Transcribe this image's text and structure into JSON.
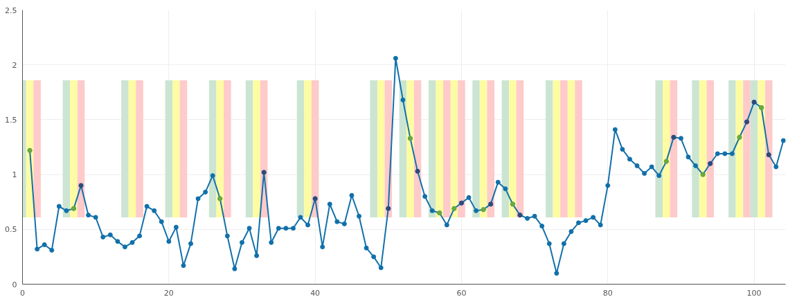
{
  "chart_data": {
    "type": "line",
    "xlim": [
      0,
      104.3
    ],
    "ylim": [
      0,
      2.5
    ],
    "xticks": [
      0,
      20,
      40,
      60,
      80,
      100
    ],
    "yticks": [
      0,
      0.5,
      1,
      1.5,
      2,
      2.5
    ],
    "grid": true,
    "marker": "circle",
    "line_style": "solid",
    "series": [
      {
        "type": "bar",
        "color": "#cbe5d2",
        "x": [
          0,
          6,
          14,
          20,
          26,
          31,
          38,
          48,
          52,
          56,
          62,
          66,
          72,
          87,
          92,
          97,
          100
        ],
        "base": [
          0.61,
          0.61,
          0.61,
          0.61,
          0.61,
          0.61,
          0.61,
          0.61,
          0.61,
          0.61,
          0.61,
          0.61,
          0.61,
          0.61,
          0.61,
          0.61,
          0.61
        ],
        "values": [
          1.25,
          1.25,
          1.25,
          1.25,
          1.25,
          1.25,
          1.25,
          1.25,
          1.25,
          1.25,
          1.25,
          1.25,
          1.25,
          1.25,
          1.25,
          1.25,
          1.25
        ]
      },
      {
        "type": "bar",
        "color": "#fdfca2",
        "x": [
          1,
          7,
          15,
          21,
          27,
          32,
          39,
          49,
          53,
          57,
          59,
          63,
          67,
          73,
          75,
          88,
          93,
          98,
          101
        ],
        "base": [
          0.61,
          0.61,
          0.61,
          0.61,
          0.61,
          0.61,
          0.61,
          0.61,
          0.61,
          0.61,
          0.61,
          0.61,
          0.61,
          0.61,
          0.61,
          0.61,
          0.61,
          0.61,
          0.61
        ],
        "values": [
          1.25,
          1.25,
          1.25,
          1.25,
          1.25,
          1.25,
          1.25,
          1.25,
          1.25,
          1.25,
          1.25,
          1.25,
          1.25,
          1.25,
          1.25,
          1.25,
          1.25,
          1.25,
          1.25
        ]
      },
      {
        "type": "bar",
        "color": "#ffcaca",
        "x": [
          2,
          8,
          16,
          22,
          28,
          33,
          40,
          50,
          54,
          58,
          60,
          64,
          68,
          74,
          76,
          89,
          94,
          99,
          102
        ],
        "base": [
          0.61,
          0.61,
          0.61,
          0.61,
          0.61,
          0.61,
          0.61,
          0.61,
          0.61,
          0.61,
          0.61,
          0.61,
          0.61,
          0.61,
          0.61,
          0.61,
          0.61,
          0.61,
          0.61
        ],
        "values": [
          1.25,
          1.25,
          1.25,
          1.25,
          1.25,
          1.25,
          1.25,
          1.25,
          1.25,
          1.25,
          1.25,
          1.25,
          1.25,
          1.25,
          1.25,
          1.25,
          1.25,
          1.25,
          1.25
        ]
      },
      {
        "color": "#1170aa",
        "x": [
          1,
          2,
          3,
          4,
          5,
          6,
          7,
          8,
          9,
          10,
          11,
          12,
          13,
          14,
          15,
          16,
          17,
          18,
          19,
          20,
          21,
          22,
          23,
          24,
          25,
          26,
          27,
          28,
          29,
          30,
          31,
          32,
          33,
          34,
          35,
          36,
          37,
          38,
          39,
          40,
          41,
          42,
          43,
          44,
          45,
          46,
          47,
          48,
          49,
          50,
          51,
          52,
          53,
          54,
          55,
          56,
          57,
          58,
          59,
          60,
          61,
          62,
          63,
          64,
          65,
          66,
          67,
          68,
          69,
          70,
          71,
          72,
          73,
          74,
          75,
          76,
          77,
          78,
          79,
          80,
          81,
          82,
          83,
          84,
          85,
          86,
          87,
          88,
          89,
          90,
          91,
          92,
          93,
          94,
          95,
          96,
          97,
          98,
          99,
          100,
          101,
          102,
          103,
          104
        ],
        "values": [
          1.22,
          0.32,
          0.36,
          0.31,
          0.71,
          0.67,
          0.69,
          0.9,
          0.63,
          0.61,
          0.43,
          0.45,
          0.39,
          0.34,
          0.38,
          0.44,
          0.71,
          0.67,
          0.57,
          0.39,
          0.52,
          0.17,
          0.37,
          0.78,
          0.84,
          0.99,
          0.78,
          0.44,
          0.14,
          0.38,
          0.51,
          0.26,
          1.02,
          0.38,
          0.51,
          0.51,
          0.51,
          0.61,
          0.54,
          0.78,
          0.34,
          0.73,
          0.57,
          0.55,
          0.81,
          0.62,
          0.33,
          0.25,
          0.15,
          0.69,
          2.06,
          1.68,
          1.33,
          1.03,
          0.8,
          0.67,
          0.65,
          0.54,
          0.69,
          0.74,
          0.79,
          0.67,
          0.68,
          0.73,
          0.93,
          0.87,
          0.73,
          0.63,
          0.6,
          0.62,
          0.53,
          0.37,
          0.1,
          0.37,
          0.48,
          0.56,
          0.58,
          0.61,
          0.54,
          0.9,
          1.41,
          1.23,
          1.14,
          1.08,
          1.01,
          1.07,
          0.99,
          1.12,
          1.34,
          1.33,
          1.16,
          1.08,
          1.0,
          1.1,
          1.19,
          1.19,
          1.19,
          1.34,
          1.48,
          1.66,
          1.61,
          1.18,
          1.07,
          1.31
        ]
      },
      {
        "type": "scatter",
        "color": "#6aaa3e",
        "x": [
          1,
          7,
          27,
          53,
          57,
          59,
          63,
          67,
          88,
          93,
          98,
          101
        ],
        "values": [
          1.22,
          0.69,
          0.78,
          1.33,
          0.65,
          0.69,
          0.68,
          0.73,
          1.12,
          1.0,
          1.34,
          1.61
        ]
      },
      {
        "type": "scatter",
        "color": "#2f4b7c",
        "x": [
          8,
          33,
          40,
          50,
          54,
          60,
          64,
          68,
          89,
          94,
          99,
          100,
          102
        ],
        "values": [
          0.9,
          1.02,
          0.78,
          0.69,
          1.03,
          0.74,
          0.73,
          0.63,
          1.34,
          1.1,
          1.48,
          1.66,
          1.18
        ]
      }
    ]
  }
}
